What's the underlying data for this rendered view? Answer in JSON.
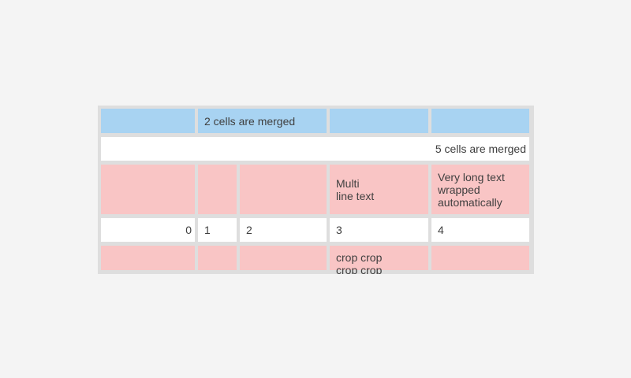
{
  "page": {
    "background": "#f4f4f4"
  },
  "table": {
    "colors": {
      "grid_background": "#dedede",
      "merged_header_blue": "#a8d3f2",
      "pink_row": "#f9c5c5",
      "white_row": "#ffffff",
      "text": "#3f3f3f"
    },
    "rows": {
      "row1": {
        "merged_label": "2 cells are merged"
      },
      "row2": {
        "merged_label": "5 cells are merged"
      },
      "row3": {
        "multiline_label": "Multi\nline text",
        "wrapped_label": "Very long text wrapped automatically"
      },
      "row4": {
        "values": [
          "0",
          "1",
          "2",
          "3",
          "4"
        ]
      },
      "row5": {
        "cropped_label": "crop crop\ncrop crop"
      }
    }
  }
}
